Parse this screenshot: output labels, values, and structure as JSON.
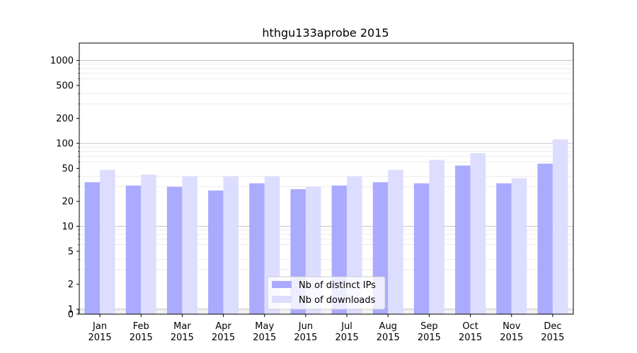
{
  "chart_data": {
    "type": "bar",
    "title": "hthgu133aprobe 2015",
    "xlabel": "",
    "ylabel": "",
    "y_scale": "symlog",
    "ylim": [
      0,
      1300
    ],
    "y_ticks": [
      0,
      1,
      2,
      5,
      10,
      20,
      50,
      100,
      200,
      500,
      1000
    ],
    "categories": [
      "Jan\n2015",
      "Feb\n2015",
      "Mar\n2015",
      "Apr\n2015",
      "May\n2015",
      "Jun\n2015",
      "Jul\n2015",
      "Aug\n2015",
      "Sep\n2015",
      "Oct\n2015",
      "Nov\n2015",
      "Dec\n2015"
    ],
    "series": [
      {
        "name": "Nb of distinct IPs",
        "color": "#aaaaff",
        "values": [
          34,
          31,
          30,
          27,
          33,
          28,
          31,
          34,
          33,
          54,
          33,
          57
        ]
      },
      {
        "name": "Nb of downloads",
        "color": "#ddddff",
        "values": [
          48,
          42,
          40,
          40,
          40,
          30,
          40,
          48,
          63,
          76,
          38,
          112
        ]
      }
    ],
    "legend_position": "bottom-center",
    "grid": "horizontal"
  }
}
